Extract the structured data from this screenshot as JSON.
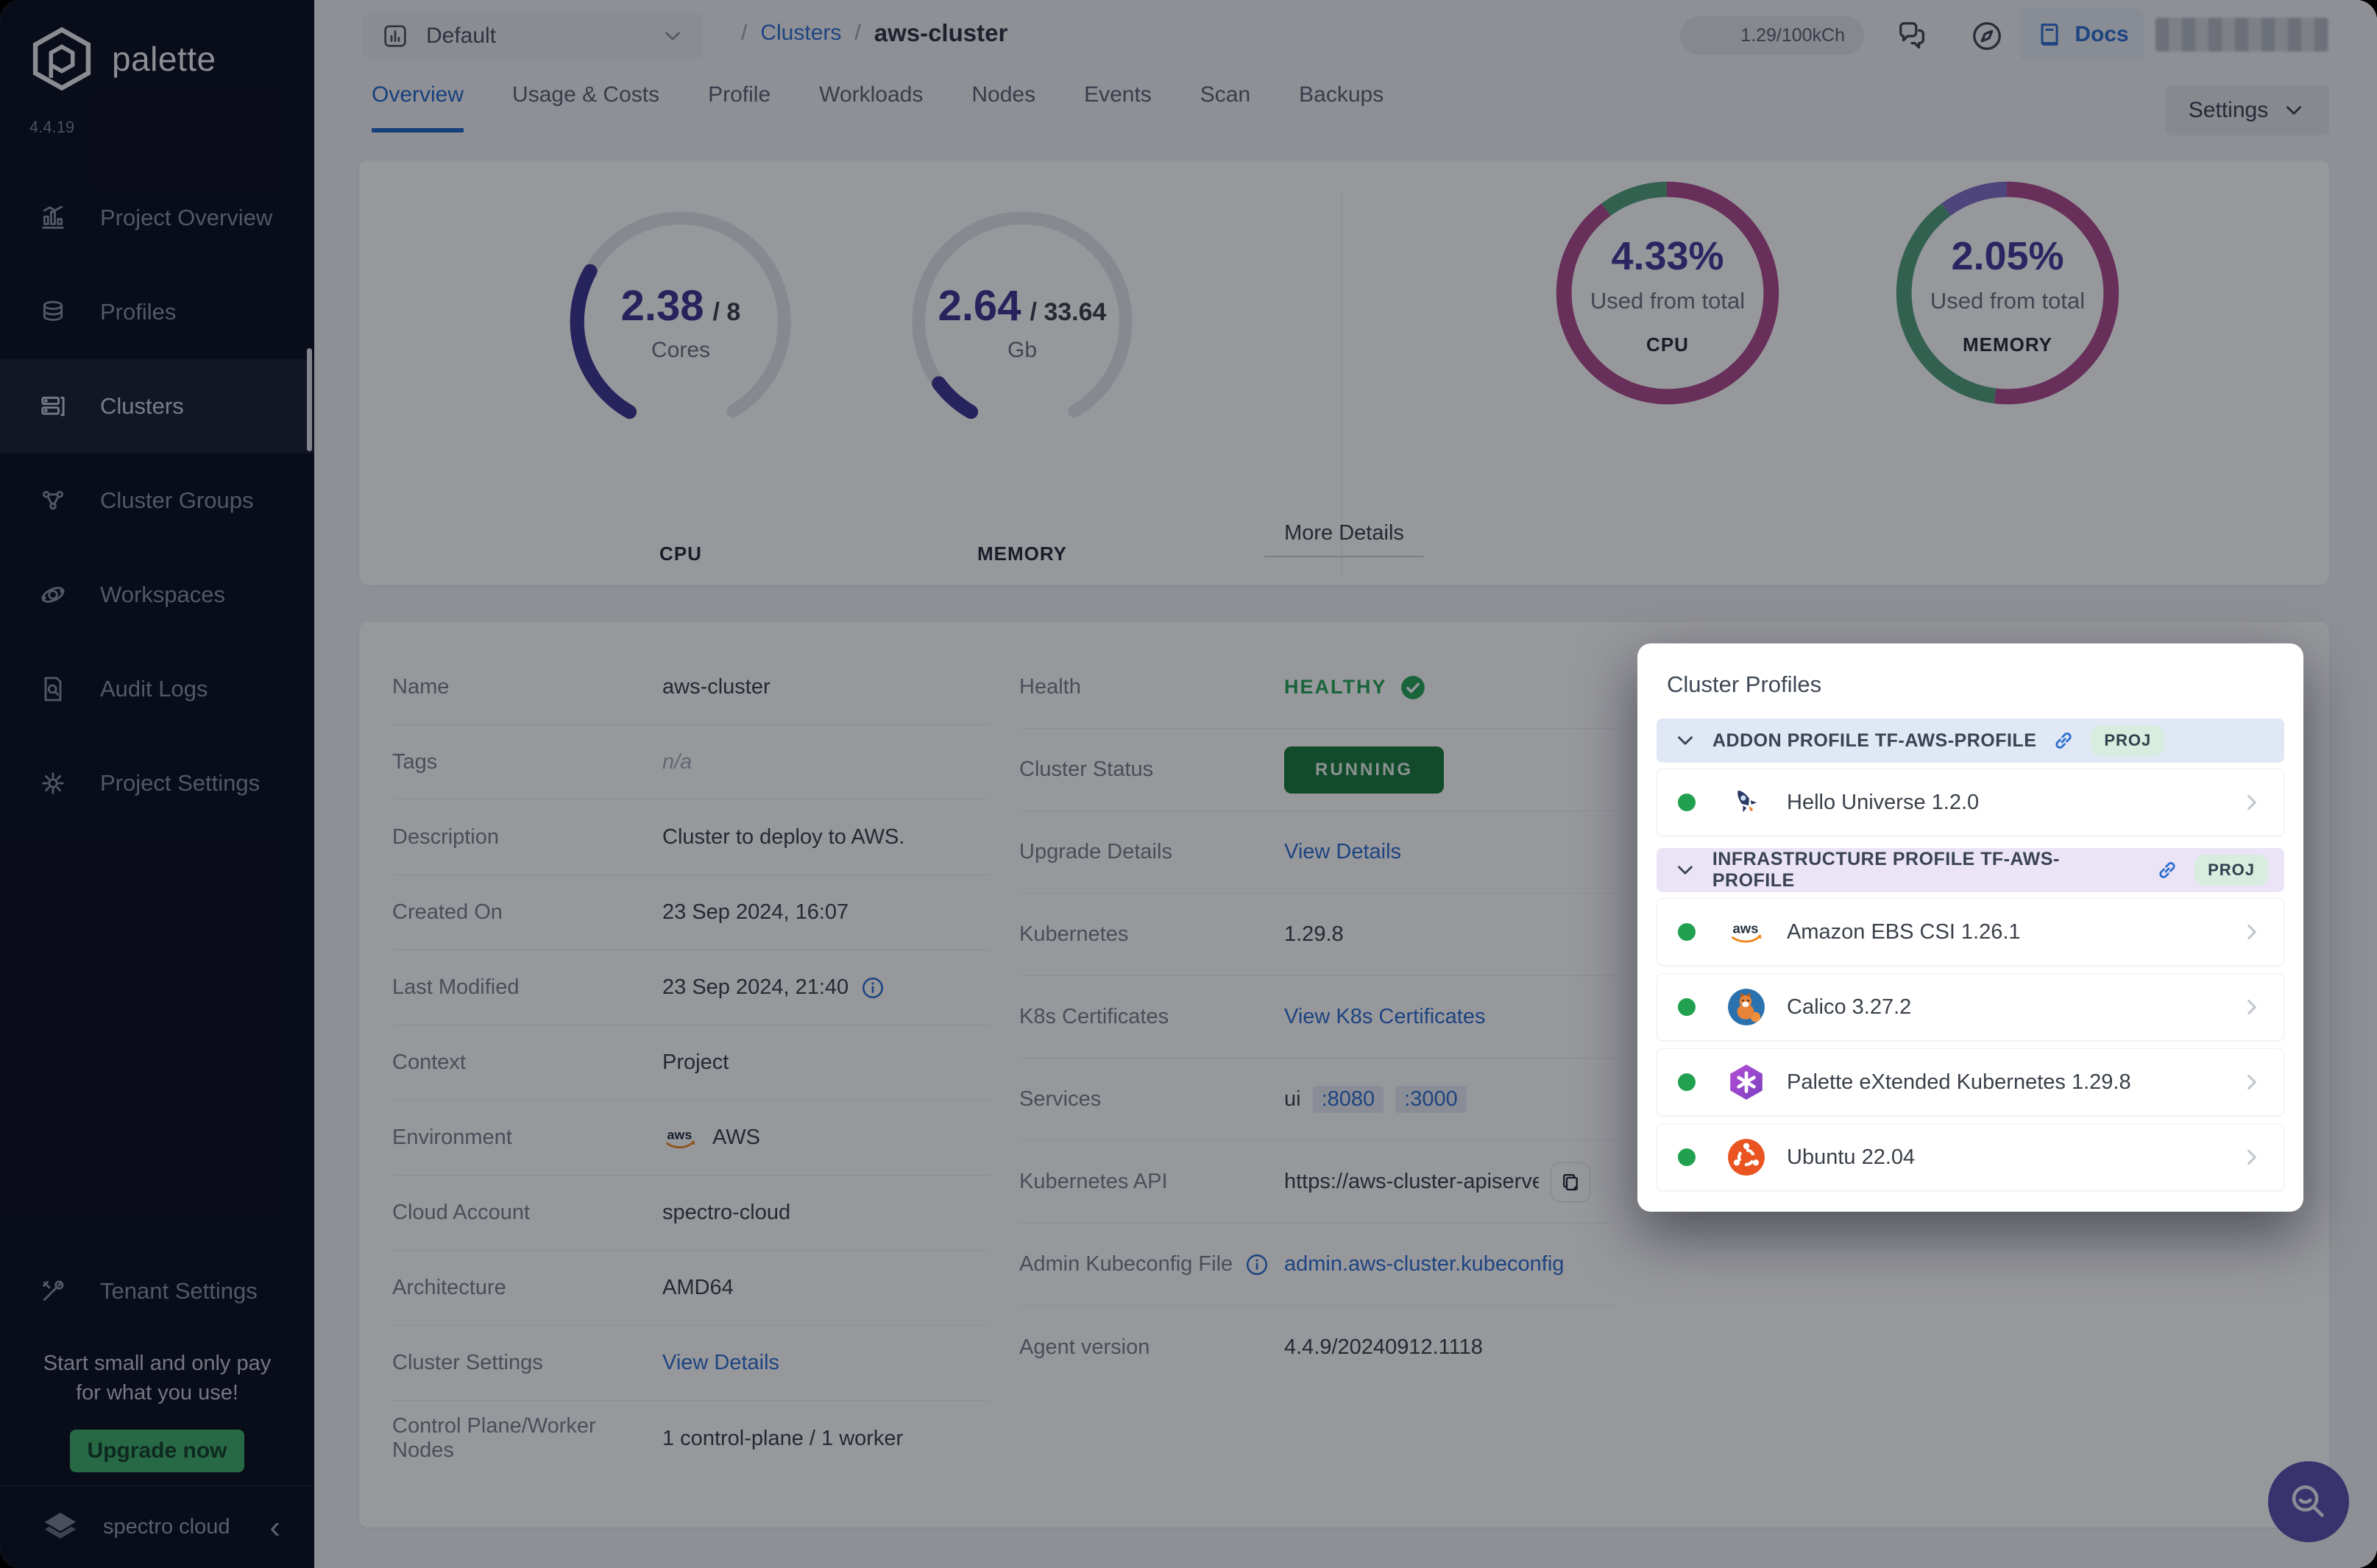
{
  "colors": {
    "accent_blue": "#2268c9",
    "link_blue": "#2f6fd0",
    "healthy_green": "#27a658",
    "running_badge_green": "#1a7a3d",
    "upgrade_green": "#3fae6a",
    "gauge_indigo": "#3f3691",
    "donut_magenta": "#ad4a8c",
    "donut_green": "#53a07c",
    "donut_violet": "#8071c7",
    "sidebar_bg": "#0c0f1e"
  },
  "sidebar": {
    "brand": "palette",
    "version": "4.4.19",
    "items": [
      {
        "label": "Project Overview",
        "icon": "chart"
      },
      {
        "label": "Profiles",
        "icon": "layers"
      },
      {
        "label": "Clusters",
        "icon": "servers",
        "active": true
      },
      {
        "label": "Cluster Groups",
        "icon": "nodes"
      },
      {
        "label": "Workspaces",
        "icon": "orbit"
      },
      {
        "label": "Audit Logs",
        "icon": "doc-search"
      },
      {
        "label": "Project Settings",
        "icon": "gear"
      }
    ],
    "tenant_settings": "Tenant Settings",
    "promo_line1": "Start small and only pay",
    "promo_line2": "for what you use!",
    "upgrade_label": "Upgrade now",
    "footer_brand": "spectro cloud"
  },
  "topbar": {
    "scope": "Default",
    "breadcrumb_sep": "/",
    "breadcrumb_root": "Clusters",
    "breadcrumb_current": "aws-cluster",
    "credits": "1.29/100kCh",
    "docs": "Docs",
    "settings": "Settings"
  },
  "tabs": [
    "Overview",
    "Usage & Costs",
    "Profile",
    "Workloads",
    "Nodes",
    "Events",
    "Scan",
    "Backups"
  ],
  "overview": {
    "gauge_cpu": {
      "value": "2.38",
      "total": "/ 8",
      "unit": "Cores",
      "title": "CPU"
    },
    "gauge_memory": {
      "value": "2.64",
      "total": "/ 33.64",
      "unit": "Gb",
      "title": "MEMORY"
    },
    "donut_cpu": {
      "percent": "4.33%",
      "caption": "Used from total",
      "title": "CPU"
    },
    "donut_memory": {
      "percent": "2.05%",
      "caption": "Used from total",
      "title": "MEMORY"
    },
    "more_details": "More Details"
  },
  "details": {
    "name": {
      "label": "Name",
      "value": "aws-cluster"
    },
    "tags": {
      "label": "Tags",
      "value": "n/a"
    },
    "description": {
      "label": "Description",
      "value": "Cluster to deploy to AWS."
    },
    "created_on": {
      "label": "Created On",
      "value": "23 Sep 2024, 16:07"
    },
    "last_modified": {
      "label": "Last Modified",
      "value": "23 Sep 2024, 21:40"
    },
    "context": {
      "label": "Context",
      "value": "Project"
    },
    "environment": {
      "label": "Environment",
      "value": "AWS"
    },
    "cloud_account": {
      "label": "Cloud Account",
      "value": "spectro-cloud"
    },
    "architecture": {
      "label": "Architecture",
      "value": "AMD64"
    },
    "cluster_settings": {
      "label": "Cluster Settings",
      "link": "View Details"
    },
    "nodes": {
      "label": "Control Plane/Worker Nodes",
      "value": "1 control-plane / 1 worker"
    },
    "health": {
      "label": "Health",
      "value": "HEALTHY"
    },
    "cluster_status": {
      "label": "Cluster Status",
      "value": "RUNNING"
    },
    "upgrade_details": {
      "label": "Upgrade Details",
      "link": "View Details"
    },
    "kubernetes": {
      "label": "Kubernetes",
      "value": "1.29.8"
    },
    "k8s_certificates": {
      "label": "K8s Certificates",
      "link": "View K8s Certificates"
    },
    "services": {
      "label": "Services",
      "name": "ui",
      "ports": [
        ":8080",
        ":3000"
      ]
    },
    "kubernetes_api": {
      "label": "Kubernetes API",
      "value": "https://aws-cluster-apiserve..."
    },
    "kubeconfig": {
      "label": "Admin Kubeconfig File",
      "link": "admin.aws-cluster.kubeconfig"
    },
    "agent_version": {
      "label": "Agent version",
      "value": "4.4.9/20240912.1118"
    }
  },
  "popup": {
    "title": "Cluster Profiles",
    "sections": [
      {
        "title": "ADDON PROFILE TF-AWS-PROFILE",
        "badge": "PROJ",
        "items": [
          {
            "name": "Hello Universe 1.2.0",
            "icon": "rocket",
            "status": "green"
          }
        ]
      },
      {
        "title": "INFRASTRUCTURE PROFILE TF-AWS-PROFILE",
        "badge": "PROJ",
        "items": [
          {
            "name": "Amazon EBS CSI 1.26.1",
            "icon": "aws",
            "status": "green"
          },
          {
            "name": "Calico 3.27.2",
            "icon": "calico",
            "status": "green"
          },
          {
            "name": "Palette eXtended Kubernetes 1.29.8",
            "icon": "pxk",
            "status": "green"
          },
          {
            "name": "Ubuntu 22.04",
            "icon": "ubuntu",
            "status": "green"
          }
        ]
      }
    ]
  },
  "chart_data": [
    {
      "type": "gauge",
      "title": "CPU",
      "value": 2.38,
      "max": 8,
      "unit": "Cores",
      "colors": {
        "progress": "#3f3691",
        "track": "#e4e6ea"
      }
    },
    {
      "type": "gauge",
      "title": "MEMORY",
      "value": 2.64,
      "max": 33.64,
      "unit": "Gb",
      "colors": {
        "progress": "#3f3691",
        "track": "#e4e6ea"
      }
    },
    {
      "type": "donut",
      "title": "CPU",
      "center_label": "4.33%",
      "subtitle": "Used from total",
      "segments": [
        {
          "name": "primary",
          "value": 90,
          "color": "#ad4a8c"
        },
        {
          "name": "secondary",
          "value": 10,
          "color": "#53a07c"
        }
      ]
    },
    {
      "type": "donut",
      "title": "MEMORY",
      "center_label": "2.05%",
      "subtitle": "Used from total",
      "segments": [
        {
          "name": "primary",
          "value": 52,
          "color": "#ad4a8c"
        },
        {
          "name": "secondary",
          "value": 38,
          "color": "#53a07c"
        },
        {
          "name": "tertiary",
          "value": 10,
          "color": "#8071c7"
        }
      ]
    }
  ]
}
